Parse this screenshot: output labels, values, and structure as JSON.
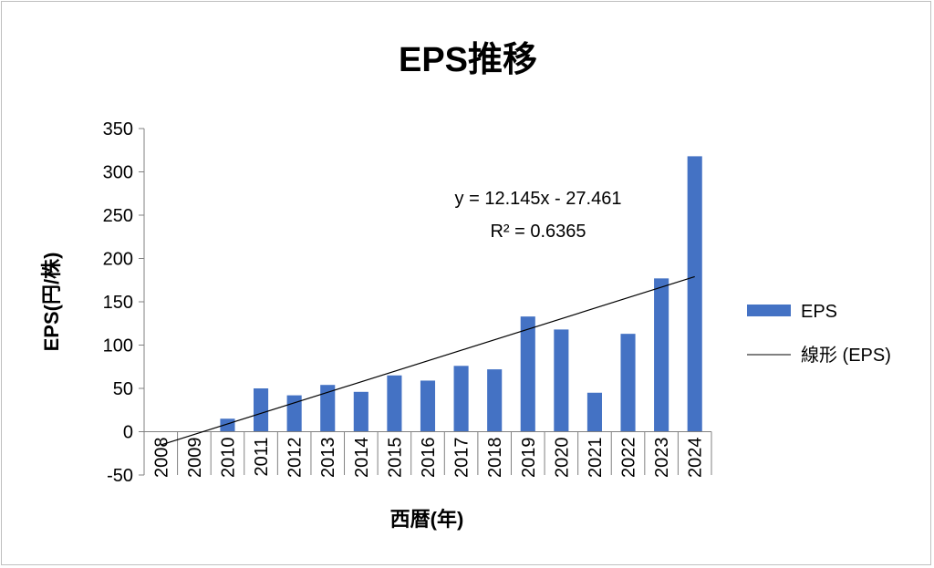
{
  "chart_data": {
    "type": "bar",
    "title": "EPS推移",
    "xlabel": "西暦(年)",
    "ylabel": "EPS(円/株)",
    "ylim": [
      -50,
      350
    ],
    "yticks": [
      -50,
      0,
      50,
      100,
      150,
      200,
      250,
      300,
      350
    ],
    "categories": [
      "2008",
      "2009",
      "2010",
      "2011",
      "2012",
      "2013",
      "2014",
      "2015",
      "2016",
      "2017",
      "2018",
      "2019",
      "2020",
      "2021",
      "2022",
      "2023",
      "2024"
    ],
    "series": [
      {
        "name": "EPS",
        "color": "#4472c4",
        "values": [
          0,
          0,
          15,
          50,
          42,
          54,
          46,
          65,
          59,
          76,
          72,
          133,
          118,
          45,
          113,
          177,
          318
        ]
      }
    ],
    "trendline": {
      "name": "線形 (EPS)",
      "slope": 12.145,
      "intercept": -27.461,
      "color": "#000000",
      "equation": "y = 12.145x - 27.461",
      "r_squared": "R² = 0.6365"
    },
    "grid": false,
    "legend_position": "right"
  }
}
